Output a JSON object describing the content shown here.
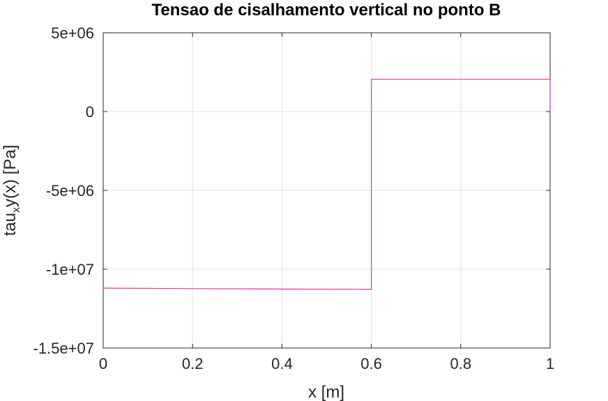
{
  "chart_data": {
    "type": "line",
    "title": "Tensao de cisalhamento vertical no ponto B",
    "xlabel": "x [m]",
    "ylabel_main": "tau",
    "ylabel_sub": "x",
    "ylabel_rest": "y(x) [Pa]",
    "xlim": [
      0,
      1
    ],
    "ylim": [
      -15000000,
      5000000
    ],
    "xticks": [
      0,
      0.2,
      0.4,
      0.6,
      0.8,
      1
    ],
    "xtick_labels": [
      "0",
      "0.2",
      "0.4",
      "0.6",
      "0.8",
      "1"
    ],
    "yticks": [
      -15000000,
      -10000000,
      -5000000,
      0,
      5000000
    ],
    "ytick_labels": [
      "-1.5e+07",
      "-1e+07",
      "-5e+06",
      "0",
      "5e+06"
    ],
    "grid": true,
    "series": [
      {
        "color": "#e0359f",
        "x": [
          0,
          0.2,
          0.4,
          0.6,
          0.6,
          0.8,
          1.0,
          1.0
        ],
        "y": [
          -11200000,
          -11230000,
          -11260000,
          -11280000,
          2050000,
          2050000,
          2050000,
          0
        ]
      }
    ]
  }
}
